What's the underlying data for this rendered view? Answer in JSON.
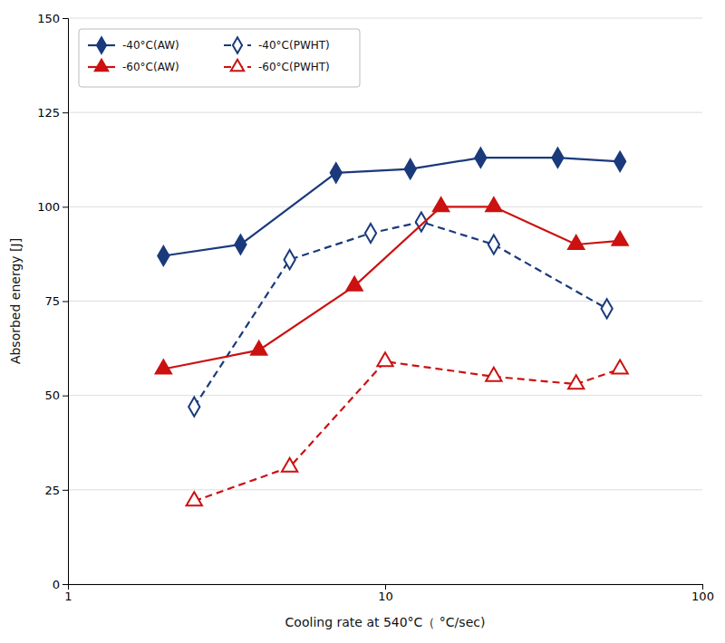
{
  "chart_data": {
    "type": "line",
    "xlabel": "Cooling rate at 540°C（ °C/sec)",
    "ylabel": "Absorbed energy [J]",
    "log": "x",
    "xlim": [
      1,
      100
    ],
    "xticks": [
      1,
      10,
      100
    ],
    "ylim": [
      0,
      150
    ],
    "yticks": [
      0,
      25,
      50,
      75,
      100,
      125,
      150
    ],
    "grid": "y",
    "legend": "upper-left",
    "series": [
      {
        "name": "-40°C(AW)",
        "color": "#1a3a7c",
        "marker": "diamond",
        "line_style": "solid",
        "x": [
          2.0,
          3.5,
          7.0,
          12.0,
          20.0,
          35.0,
          55.0
        ],
        "values": [
          87,
          90,
          109,
          110,
          113,
          113,
          112
        ]
      },
      {
        "name": "-40°C(PWHT)",
        "color": "#1a3a7c",
        "marker": "diamond-open",
        "line_style": "dashed",
        "x": [
          2.5,
          5.0,
          9.0,
          13.0,
          22.0,
          50.0
        ],
        "values": [
          47,
          86,
          93,
          96,
          90,
          73
        ]
      },
      {
        "name": "-60°C(AW)",
        "color": "#cc1111",
        "marker": "triangle",
        "line_style": "solid",
        "x": [
          2.0,
          4.0,
          8.0,
          15.0,
          22.0,
          40.0,
          55.0
        ],
        "values": [
          57,
          62,
          79,
          100,
          100,
          90,
          91
        ]
      },
      {
        "name": "-60°C(PWHT)",
        "color": "#cc1111",
        "marker": "triangle-open",
        "line_style": "dashed",
        "x": [
          2.5,
          5.0,
          10.0,
          22.0,
          40.0,
          55.0
        ],
        "values": [
          22,
          31,
          59,
          55,
          53,
          57
        ]
      }
    ]
  }
}
